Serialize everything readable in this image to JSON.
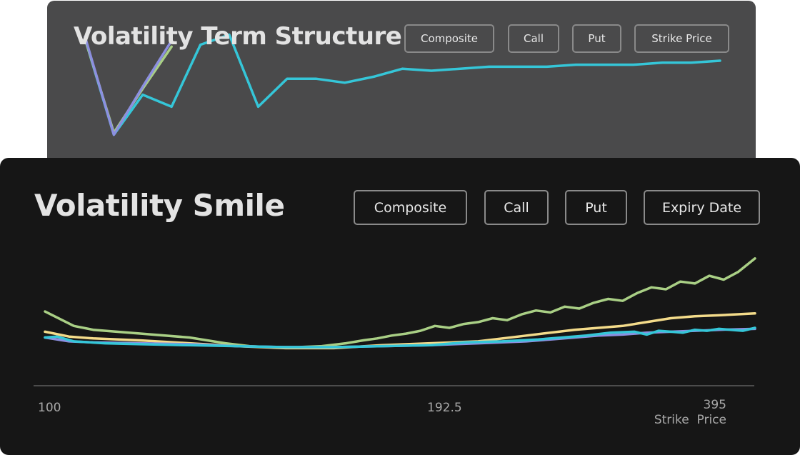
{
  "term_structure": {
    "title": "Volatility Term Structure",
    "buttons": [
      "Composite",
      "Call",
      "Put",
      "Strike Price"
    ]
  },
  "smile": {
    "title": "Volatility Smile",
    "buttons": [
      "Composite",
      "Call",
      "Put",
      "Expiry Date"
    ],
    "tick_labels": [
      "100",
      "192.5",
      "395"
    ],
    "xlabel": "Strike  Price"
  },
  "colors": {
    "panel_back": "#4a4a4b",
    "panel_front": "#161616",
    "green": "#a9cf85",
    "yellow": "#f3db8a",
    "purple": "#8c8fe0",
    "cyan": "#35c6d8"
  },
  "chart_data": [
    {
      "type": "line",
      "title": "Volatility Term Structure",
      "xlabel": "",
      "ylabel": "",
      "grid": false,
      "series": [
        {
          "color": "cyan",
          "x": [
            0,
            1,
            2,
            3,
            4,
            5,
            6,
            7,
            8,
            9,
            10,
            11,
            12,
            13,
            14,
            15,
            16,
            17,
            18,
            19,
            20,
            21,
            22
          ],
          "values": [
            81,
            33,
            53,
            47,
            78,
            83,
            47,
            61,
            61,
            59,
            62,
            66,
            65,
            66,
            67,
            67,
            67,
            68,
            68,
            68,
            69,
            69,
            70
          ]
        },
        {
          "color": "green",
          "x": [
            0,
            1,
            2,
            3
          ],
          "values": [
            81,
            34,
            56,
            77
          ]
        },
        {
          "color": "purple",
          "x": [
            0,
            1,
            2,
            3
          ],
          "values": [
            82,
            33,
            57,
            80
          ]
        }
      ]
    },
    {
      "type": "line",
      "title": "Volatility Smile",
      "xlabel": "Strike  Price",
      "ylabel": "",
      "xlim": [
        100,
        395
      ],
      "grid": false,
      "series": [
        {
          "color": "green",
          "x": [
            100,
            112,
            120,
            140,
            160,
            175,
            185,
            192.5,
            205,
            215,
            225,
            232,
            238,
            244,
            250,
            256,
            262,
            268,
            274,
            280,
            286,
            292,
            298,
            304,
            310,
            316,
            322,
            328,
            334,
            340,
            346,
            352,
            358,
            364,
            370,
            376,
            382,
            388,
            395
          ],
          "values": [
            38.5,
            31,
            29,
            27,
            25,
            22,
            20.5,
            20,
            20,
            20.5,
            22,
            23.5,
            24.5,
            26,
            27,
            28.5,
            31,
            30,
            32,
            33,
            35,
            34,
            37,
            39,
            38,
            41,
            40,
            43,
            45,
            44,
            48,
            51,
            50,
            54,
            53,
            57,
            55,
            59,
            66
          ]
        },
        {
          "color": "yellow",
          "x": [
            100,
            110,
            120,
            140,
            160,
            180,
            200,
            220,
            240,
            260,
            280,
            300,
            320,
            340,
            350,
            360,
            370,
            380,
            395
          ],
          "values": [
            28,
            25.5,
            24.5,
            23.5,
            22,
            20.5,
            19.5,
            19.5,
            21,
            22,
            23,
            26,
            29,
            31,
            33,
            35,
            36,
            36.5,
            37.5
          ]
        },
        {
          "color": "purple",
          "x": [
            100,
            110,
            120,
            140,
            160,
            180,
            200,
            220,
            240,
            260,
            270,
            280,
            290,
            300,
            310,
            320,
            330,
            340,
            350,
            360,
            370,
            380,
            395
          ],
          "values": [
            25,
            23,
            22.5,
            22,
            21.5,
            20.5,
            20,
            20,
            20.5,
            21,
            21.5,
            22,
            22.5,
            23,
            24,
            25,
            26,
            26.5,
            27.5,
            28,
            28.5,
            29,
            29.5
          ]
        },
        {
          "color": "cyan",
          "x": [
            100,
            105,
            112,
            125,
            140,
            160,
            180,
            200,
            220,
            240,
            260,
            275,
            290,
            305,
            315,
            325,
            335,
            345,
            350,
            355,
            360,
            365,
            370,
            375,
            380,
            385,
            390,
            395
          ],
          "values": [
            25,
            25.5,
            23,
            22,
            21.5,
            21,
            20.5,
            20,
            20,
            20.5,
            21,
            22.5,
            23,
            24,
            25,
            26,
            27.5,
            28,
            26.5,
            28.5,
            28,
            27.5,
            29,
            28.5,
            29.5,
            29,
            28.5,
            30
          ]
        }
      ]
    }
  ]
}
